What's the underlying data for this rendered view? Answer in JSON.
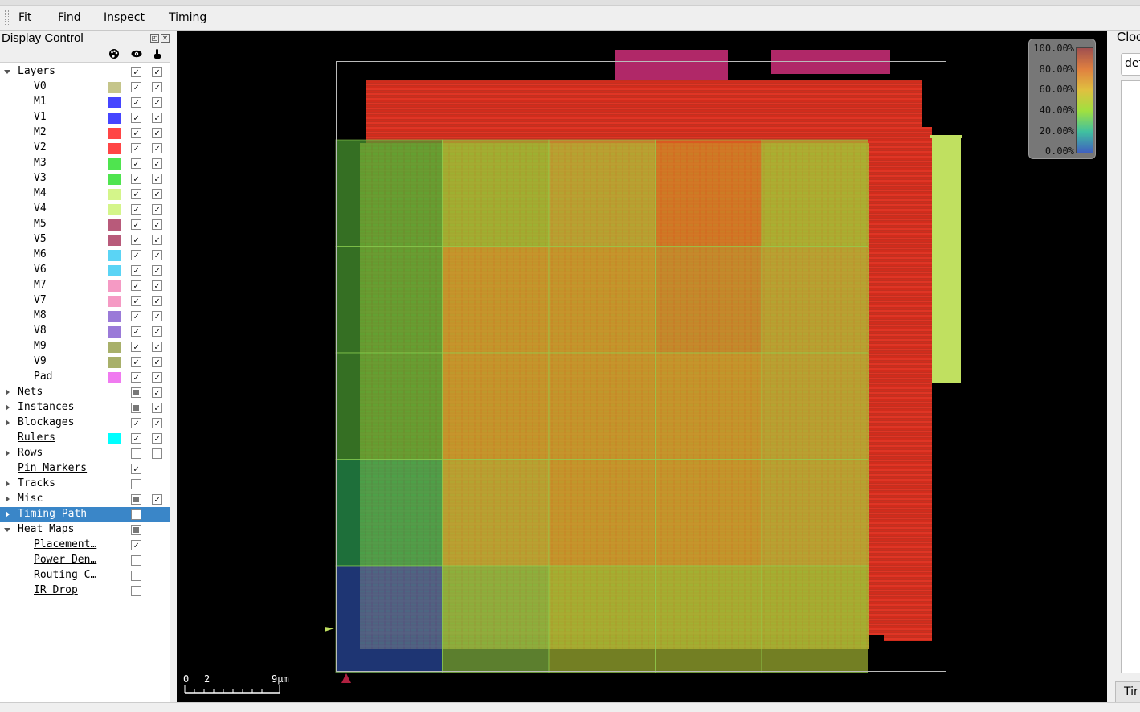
{
  "menu": [
    "Fit",
    "Find",
    "Inspect",
    "Timing"
  ],
  "display_control": {
    "title": "Display Control",
    "rows": [
      {
        "label": "Layers",
        "indent": 0,
        "expand": "down",
        "color": null,
        "vis": "checked",
        "sel": "checked"
      },
      {
        "label": "V0",
        "indent": 1,
        "color": "#c5c58a",
        "vis": "checked",
        "sel": "checked"
      },
      {
        "label": "M1",
        "indent": 1,
        "color": "#4545ff",
        "vis": "checked",
        "sel": "checked"
      },
      {
        "label": "V1",
        "indent": 1,
        "color": "#4545ff",
        "vis": "checked",
        "sel": "checked"
      },
      {
        "label": "M2",
        "indent": 1,
        "color": "#ff4545",
        "vis": "checked",
        "sel": "checked"
      },
      {
        "label": "V2",
        "indent": 1,
        "color": "#ff4545",
        "vis": "checked",
        "sel": "checked"
      },
      {
        "label": "M3",
        "indent": 1,
        "color": "#4fe44f",
        "vis": "checked",
        "sel": "checked"
      },
      {
        "label": "V3",
        "indent": 1,
        "color": "#4fe44f",
        "vis": "checked",
        "sel": "checked"
      },
      {
        "label": "M4",
        "indent": 1,
        "color": "#d4f58a",
        "vis": "checked",
        "sel": "checked"
      },
      {
        "label": "V4",
        "indent": 1,
        "color": "#d4f58a",
        "vis": "checked",
        "sel": "checked"
      },
      {
        "label": "M5",
        "indent": 1,
        "color": "#b85a7a",
        "vis": "checked",
        "sel": "checked"
      },
      {
        "label": "V5",
        "indent": 1,
        "color": "#b85a7a",
        "vis": "checked",
        "sel": "checked"
      },
      {
        "label": "M6",
        "indent": 1,
        "color": "#5ad4f5",
        "vis": "checked",
        "sel": "checked"
      },
      {
        "label": "V6",
        "indent": 1,
        "color": "#5ad4f5",
        "vis": "checked",
        "sel": "checked"
      },
      {
        "label": "M7",
        "indent": 1,
        "color": "#f59ac4",
        "vis": "checked",
        "sel": "checked"
      },
      {
        "label": "V7",
        "indent": 1,
        "color": "#f59ac4",
        "vis": "checked",
        "sel": "checked"
      },
      {
        "label": "M8",
        "indent": 1,
        "color": "#9a7ad8",
        "vis": "checked",
        "sel": "checked"
      },
      {
        "label": "V8",
        "indent": 1,
        "color": "#9a7ad8",
        "vis": "checked",
        "sel": "checked"
      },
      {
        "label": "M9",
        "indent": 1,
        "color": "#a8b06a",
        "vis": "checked",
        "sel": "checked"
      },
      {
        "label": "V9",
        "indent": 1,
        "color": "#a8b06a",
        "vis": "checked",
        "sel": "checked"
      },
      {
        "label": "Pad",
        "indent": 1,
        "color": "#f07af0",
        "vis": "checked",
        "sel": "checked"
      },
      {
        "label": "Nets",
        "indent": 0,
        "expand": "right",
        "color": null,
        "vis": "partial",
        "sel": "checked"
      },
      {
        "label": "Instances",
        "indent": 0,
        "expand": "right",
        "color": null,
        "vis": "partial",
        "sel": "checked"
      },
      {
        "label": "Blockages",
        "indent": 0,
        "expand": "right",
        "color": null,
        "vis": "checked",
        "sel": "checked"
      },
      {
        "label": "Rulers",
        "indent": 0,
        "underline": true,
        "color": "#00ffff",
        "vis": "checked",
        "sel": "checked"
      },
      {
        "label": "Rows",
        "indent": 0,
        "expand": "right",
        "color": null,
        "vis": "unchecked",
        "sel": "unchecked"
      },
      {
        "label": "Pin Markers",
        "indent": 0,
        "underline": true,
        "color": null,
        "vis": "checked",
        "sel": "none"
      },
      {
        "label": "Tracks",
        "indent": 0,
        "expand": "right",
        "color": null,
        "vis": "unchecked",
        "sel": "none"
      },
      {
        "label": "Misc",
        "indent": 0,
        "expand": "right",
        "color": null,
        "vis": "partial",
        "sel": "checked"
      },
      {
        "label": "Timing Path",
        "indent": 0,
        "expand": "right",
        "color": null,
        "vis": "unchecked",
        "sel": "none",
        "selected": true
      },
      {
        "label": "Heat Maps",
        "indent": 0,
        "expand": "down",
        "color": null,
        "vis": "partial",
        "sel": "none"
      },
      {
        "label": "Placement…",
        "indent": 1,
        "underline": true,
        "color": null,
        "vis": "checked",
        "sel": "none"
      },
      {
        "label": "Power Den…",
        "indent": 1,
        "underline": true,
        "color": null,
        "vis": "unchecked",
        "sel": "none"
      },
      {
        "label": "Routing C…",
        "indent": 1,
        "underline": true,
        "color": null,
        "vis": "unchecked",
        "sel": "none"
      },
      {
        "label": "IR Drop",
        "indent": 1,
        "underline": true,
        "color": null,
        "vis": "unchecked",
        "sel": "none"
      }
    ]
  },
  "legend": [
    "100.00%",
    "80.00%",
    "60.00%",
    "40.00%",
    "20.00%",
    "0.00%"
  ],
  "scale": {
    "t0": "0",
    "t1": "2",
    "t2": "9μm"
  },
  "right_panel": {
    "title": "Cloc",
    "combo": "def",
    "tab": "Tir"
  }
}
